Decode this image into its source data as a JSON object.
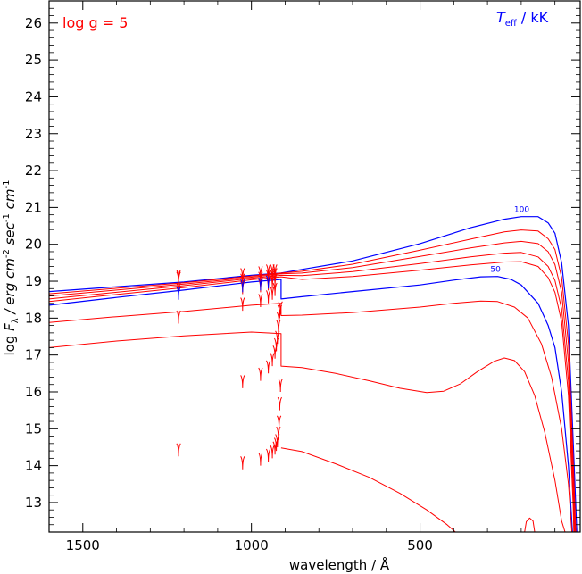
{
  "chart_data": {
    "type": "line",
    "xlabel_text": "wavelength / Å",
    "ylabel_parts": {
      "pre": "log ",
      "F": "F",
      "lambda": "λ",
      "mid": "  / erg cm",
      "e1": "-2",
      "sec": " sec",
      "e2": "-1",
      "cm": " cm",
      "e3": "-1"
    },
    "annotation_logg": "log g = 5",
    "legend_title": {
      "T": "T",
      "eff": "eff",
      "unit": " / kK"
    },
    "xlim": [
      1600,
      25
    ],
    "ylim": [
      12.2,
      26.6
    ],
    "x_ticks": [
      1500,
      1000,
      500
    ],
    "x_tick_labels": [
      "1500",
      "1000",
      "500"
    ],
    "y_ticks": [
      13,
      14,
      15,
      16,
      17,
      18,
      19,
      20,
      21,
      22,
      23,
      24,
      25,
      26
    ],
    "y_tick_labels": [
      "13",
      "14",
      "15",
      "16",
      "17",
      "18",
      "19",
      "20",
      "21",
      "22",
      "23",
      "24",
      "25",
      "26"
    ],
    "colors": {
      "model": "#ff0000",
      "labelled": "#0000ff",
      "axis": "#000000"
    },
    "series": [
      {
        "label": "100",
        "color": "#0000ff",
        "lw": 1.2,
        "points": [
          [
            1600,
            18.72
          ],
          [
            1400,
            18.85
          ],
          [
            1200,
            18.98
          ],
          [
            1000,
            19.16
          ],
          [
            912,
            19.22
          ],
          [
            850,
            19.32
          ],
          [
            700,
            19.55
          ],
          [
            500,
            20.02
          ],
          [
            350,
            20.45
          ],
          [
            250,
            20.68
          ],
          [
            200,
            20.75
          ],
          [
            150,
            20.75
          ],
          [
            120,
            20.58
          ],
          [
            100,
            20.3
          ],
          [
            80,
            19.5
          ],
          [
            60,
            17.8
          ],
          [
            45,
            14.5
          ],
          [
            35,
            12.2
          ]
        ]
      },
      {
        "label": "",
        "color": "#ff0000",
        "lw": 1,
        "points": [
          [
            1600,
            18.66
          ],
          [
            1400,
            18.81
          ],
          [
            1200,
            18.96
          ],
          [
            1000,
            19.14
          ],
          [
            912,
            19.22
          ],
          [
            850,
            19.27
          ],
          [
            700,
            19.46
          ],
          [
            500,
            19.84
          ],
          [
            350,
            20.14
          ],
          [
            250,
            20.34
          ],
          [
            200,
            20.39
          ],
          [
            150,
            20.36
          ],
          [
            120,
            20.15
          ],
          [
            100,
            19.86
          ],
          [
            80,
            19.1
          ],
          [
            60,
            17.3
          ],
          [
            45,
            14
          ],
          [
            38,
            12.2
          ]
        ]
      },
      {
        "label": "",
        "color": "#ff0000",
        "lw": 1,
        "points": [
          [
            1600,
            18.6
          ],
          [
            1400,
            18.76
          ],
          [
            1200,
            18.92
          ],
          [
            1000,
            19.11
          ],
          [
            912,
            19.2
          ],
          [
            850,
            19.22
          ],
          [
            700,
            19.37
          ],
          [
            500,
            19.67
          ],
          [
            350,
            19.9
          ],
          [
            250,
            20.04
          ],
          [
            200,
            20.08
          ],
          [
            150,
            20.02
          ],
          [
            120,
            19.8
          ],
          [
            100,
            19.45
          ],
          [
            80,
            18.7
          ],
          [
            60,
            16.8
          ],
          [
            45,
            13.6
          ],
          [
            40,
            12.2
          ]
        ]
      },
      {
        "label": "",
        "color": "#ff0000",
        "lw": 1,
        "points": [
          [
            1600,
            18.52
          ],
          [
            1400,
            18.7
          ],
          [
            1200,
            18.88
          ],
          [
            1000,
            19.08
          ],
          [
            912,
            19.16
          ],
          [
            850,
            19.15
          ],
          [
            700,
            19.26
          ],
          [
            500,
            19.48
          ],
          [
            350,
            19.66
          ],
          [
            250,
            19.76
          ],
          [
            200,
            19.78
          ],
          [
            150,
            19.66
          ],
          [
            120,
            19.4
          ],
          [
            100,
            19.02
          ],
          [
            80,
            18.25
          ],
          [
            60,
            16.3
          ],
          [
            45,
            13.2
          ],
          [
            42,
            12.2
          ]
        ]
      },
      {
        "label": "",
        "color": "#ff0000",
        "lw": 1,
        "points": [
          [
            1600,
            18.45
          ],
          [
            1400,
            18.64
          ],
          [
            1200,
            18.83
          ],
          [
            1000,
            19.04
          ],
          [
            912,
            19.12
          ],
          [
            850,
            19.05
          ],
          [
            700,
            19.13
          ],
          [
            500,
            19.3
          ],
          [
            350,
            19.44
          ],
          [
            250,
            19.52
          ],
          [
            200,
            19.53
          ],
          [
            150,
            19.4
          ],
          [
            120,
            19.1
          ],
          [
            100,
            18.7
          ],
          [
            80,
            17.9
          ],
          [
            60,
            15.9
          ],
          [
            46,
            12.9
          ],
          [
            44,
            12.2
          ]
        ]
      },
      {
        "label": "50",
        "color": "#0000ff",
        "lw": 1.2,
        "points": [
          [
            1600,
            18.35
          ],
          [
            1400,
            18.56
          ],
          [
            1200,
            18.76
          ],
          [
            1000,
            18.98
          ],
          [
            912,
            19.05
          ],
          [
            912,
            18.52
          ],
          [
            850,
            18.58
          ],
          [
            700,
            18.72
          ],
          [
            500,
            18.9
          ],
          [
            400,
            19.03
          ],
          [
            320,
            19.12
          ],
          [
            270,
            19.13
          ],
          [
            230,
            19.05
          ],
          [
            200,
            18.9
          ],
          [
            150,
            18.4
          ],
          [
            120,
            17.8
          ],
          [
            100,
            17.2
          ],
          [
            80,
            16
          ],
          [
            60,
            14
          ],
          [
            48,
            12.2
          ]
        ]
      },
      {
        "label": "",
        "color": "#ff0000",
        "lw": 1,
        "points": [
          [
            1600,
            17.88
          ],
          [
            1400,
            18.04
          ],
          [
            1200,
            18.18
          ],
          [
            1000,
            18.35
          ],
          [
            912,
            18.4
          ],
          [
            912,
            18.07
          ],
          [
            850,
            18.08
          ],
          [
            700,
            18.15
          ],
          [
            500,
            18.3
          ],
          [
            400,
            18.4
          ],
          [
            320,
            18.46
          ],
          [
            270,
            18.45
          ],
          [
            220,
            18.3
          ],
          [
            180,
            18
          ],
          [
            140,
            17.3
          ],
          [
            110,
            16.4
          ],
          [
            80,
            15
          ],
          [
            60,
            13.5
          ],
          [
            50,
            12.2
          ]
        ]
      },
      {
        "label": "",
        "color": "#ff0000",
        "lw": 1,
        "points": [
          [
            1600,
            17.2
          ],
          [
            1400,
            17.38
          ],
          [
            1200,
            17.52
          ],
          [
            1000,
            17.62
          ],
          [
            912,
            17.58
          ],
          [
            912,
            16.7
          ],
          [
            850,
            16.66
          ],
          [
            750,
            16.5
          ],
          [
            650,
            16.3
          ],
          [
            560,
            16.1
          ],
          [
            480,
            15.98
          ],
          [
            430,
            16.02
          ],
          [
            380,
            16.22
          ],
          [
            330,
            16.55
          ],
          [
            280,
            16.83
          ],
          [
            250,
            16.92
          ],
          [
            220,
            16.85
          ],
          [
            190,
            16.55
          ],
          [
            160,
            15.9
          ],
          [
            130,
            14.9
          ],
          [
            100,
            13.6
          ],
          [
            80,
            12.5
          ],
          [
            70,
            12.2
          ]
        ]
      },
      {
        "label": "",
        "color": "#ff0000",
        "lw": 1,
        "points": [
          [
            912,
            14.48
          ],
          [
            850,
            14.38
          ],
          [
            750,
            14.05
          ],
          [
            650,
            13.68
          ],
          [
            560,
            13.25
          ],
          [
            480,
            12.8
          ],
          [
            420,
            12.4
          ],
          [
            395,
            12.2
          ]
        ]
      },
      {
        "label": "",
        "color": "#ff0000",
        "lw": 1,
        "points": [
          [
            190,
            12.2
          ],
          [
            185,
            12.48
          ],
          [
            175,
            12.58
          ],
          [
            165,
            12.5
          ],
          [
            160,
            12.2
          ]
        ]
      }
    ],
    "absorption_lines": [
      {
        "wavelength": 1216,
        "color": "#ff0000",
        "depths": [
          18.95,
          18.9,
          18.6,
          17.85,
          14.25
        ]
      },
      {
        "wavelength": 1216,
        "color": "#0000ff",
        "depths": [
          18.5
        ]
      },
      {
        "wavelength": 1026,
        "color": "#ff0000",
        "depths": [
          19.0,
          18.85,
          18.65,
          18.2,
          16.1,
          13.9
        ]
      },
      {
        "wavelength": 1026,
        "color": "#0000ff",
        "depths": [
          18.7
        ]
      },
      {
        "wavelength": 973,
        "color": "#ff0000",
        "depths": [
          19.05,
          18.9,
          18.7,
          18.3,
          16.3,
          14.0
        ]
      },
      {
        "wavelength": 973,
        "color": "#0000ff",
        "depths": [
          18.75
        ]
      },
      {
        "wavelength": 950,
        "color": "#ff0000",
        "depths": [
          19.1,
          18.95,
          18.75,
          18.4,
          16.5,
          14.1
        ]
      },
      {
        "wavelength": 950,
        "color": "#0000ff",
        "depths": [
          18.8
        ]
      },
      {
        "wavelength": 938,
        "color": "#ff0000",
        "depths": [
          19.1,
          18.95,
          18.8,
          18.5,
          16.7,
          14.2
        ]
      },
      {
        "wavelength": 930,
        "color": "#ff0000",
        "depths": [
          19.1,
          19.0,
          18.85,
          18.6,
          16.9,
          14.3
        ]
      },
      {
        "wavelength": 926,
        "color": "#ff0000",
        "depths": [
          17.1,
          14.4
        ]
      },
      {
        "wavelength": 923,
        "color": "#ff0000",
        "depths": [
          17.3,
          14.5
        ]
      },
      {
        "wavelength": 920,
        "color": "#ff0000",
        "depths": [
          17.6,
          14.7
        ]
      },
      {
        "wavelength": 918,
        "color": "#ff0000",
        "depths": [
          17.8,
          15.0
        ]
      },
      {
        "wavelength": 916,
        "color": "#ff0000",
        "depths": [
          18.0,
          15.5
        ]
      },
      {
        "wavelength": 914,
        "color": "#ff0000",
        "depths": [
          18.1,
          16.0
        ]
      }
    ]
  }
}
